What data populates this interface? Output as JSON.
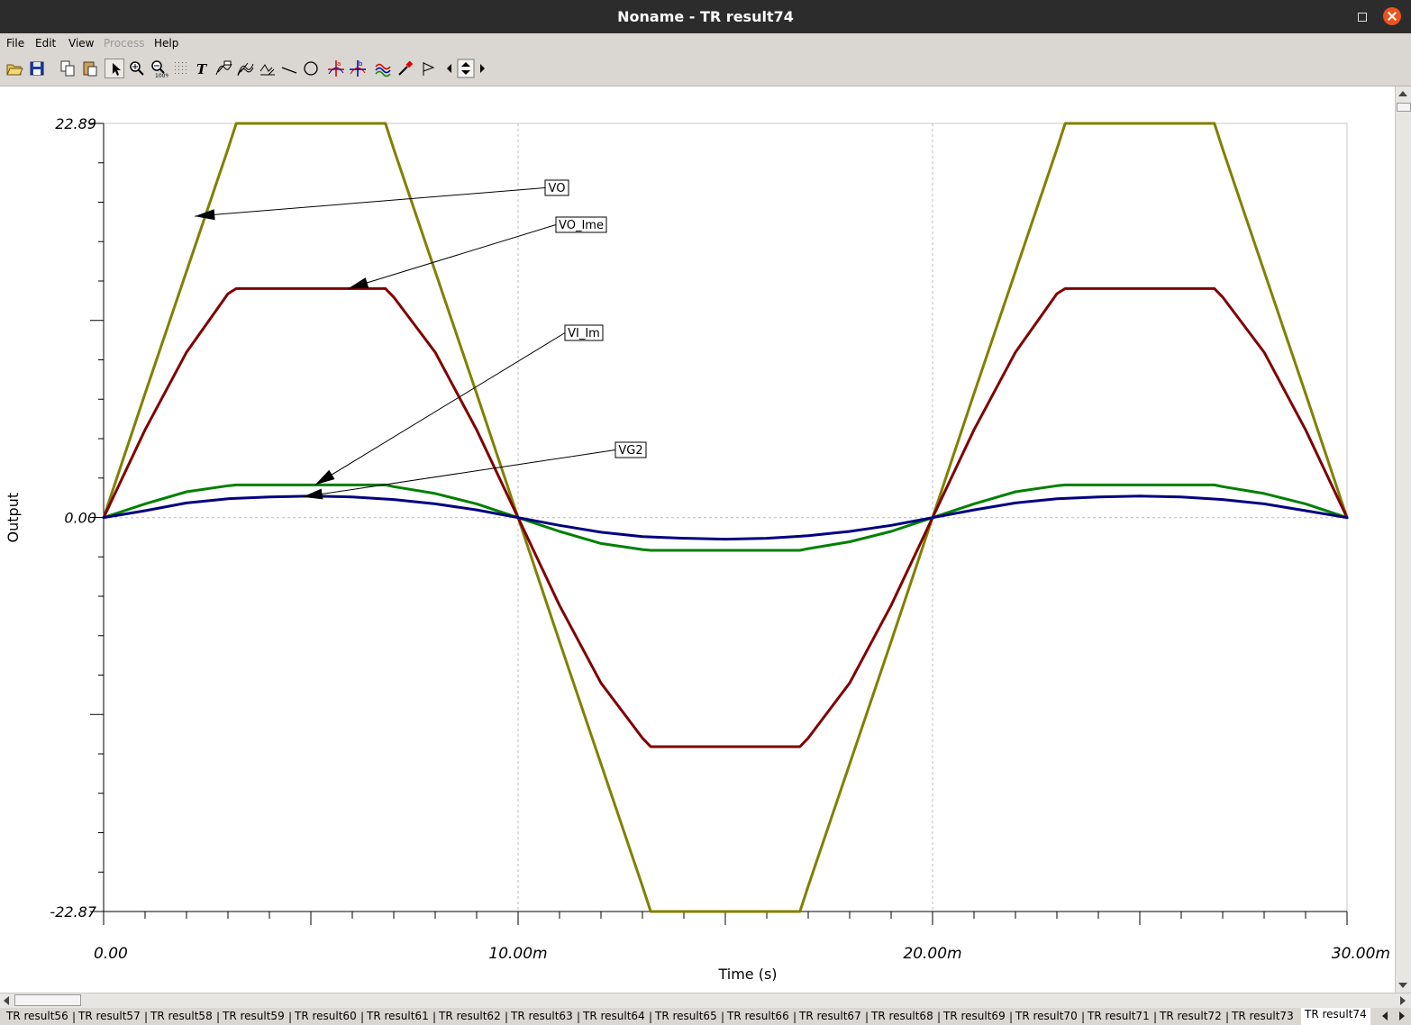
{
  "window": {
    "title": "Noname - TR result74"
  },
  "menu": {
    "items": [
      {
        "label": "File",
        "enabled": true
      },
      {
        "label": "Edit",
        "enabled": true
      },
      {
        "label": "View",
        "enabled": true
      },
      {
        "label": "Process",
        "enabled": false
      },
      {
        "label": "Help",
        "enabled": true
      }
    ]
  },
  "toolbar": {
    "icons": [
      "open-folder-icon",
      "save-icon",
      "copy-icon",
      "paste-icon",
      "pointer-icon",
      "zoom-in-icon",
      "zoom-100-icon",
      "grid-icon",
      "text-icon",
      "curve-label-icon",
      "multi-curve-label-icon",
      "waveform-label-icon",
      "line-icon",
      "circle-icon",
      "cursor-a-icon",
      "cursor-b-icon",
      "wave-select-icon",
      "probe-icon",
      "flag-icon",
      "scroll-left-icon",
      "scroll-updown-icon",
      "scroll-right-icon"
    ]
  },
  "chart_data": {
    "type": "line",
    "title": "",
    "xlabel": "Time (s)",
    "ylabel": "Output",
    "xlim": [
      0,
      0.03
    ],
    "ylim": [
      -22.87,
      22.89
    ],
    "x_tick_labels": [
      "0.00",
      "10.00m",
      "20.00m",
      "30.00m"
    ],
    "x_tick_values": [
      0,
      0.01,
      0.02,
      0.03
    ],
    "y_tick_labels": [
      "22.89",
      "0.00",
      "-22.87"
    ],
    "y_tick_values": [
      22.89,
      0,
      -22.87
    ],
    "grid": true,
    "series": [
      {
        "name": "VO",
        "color": "#808000",
        "x": [
          0,
          0.001,
          0.002,
          0.003,
          0.0032,
          0.004,
          0.005,
          0.006,
          0.0068,
          0.007,
          0.008,
          0.009,
          0.01,
          0.011,
          0.012,
          0.013,
          0.0132,
          0.014,
          0.015,
          0.016,
          0.0168,
          0.017,
          0.018,
          0.019,
          0.02,
          0.021,
          0.022,
          0.023,
          0.0232,
          0.024,
          0.025,
          0.026,
          0.0268,
          0.027,
          0.028,
          0.029,
          0.03
        ],
        "values": [
          0,
          7.2,
          14.3,
          21.4,
          22.89,
          22.89,
          22.89,
          22.89,
          22.89,
          21.4,
          14.3,
          7.2,
          0,
          -7.2,
          -14.3,
          -21.4,
          -22.87,
          -22.87,
          -22.87,
          -22.87,
          -22.87,
          -21.4,
          -14.3,
          -7.2,
          0,
          7.2,
          14.3,
          21.4,
          22.89,
          22.89,
          22.89,
          22.89,
          22.89,
          21.4,
          14.3,
          7.2,
          0
        ]
      },
      {
        "name": "VO_Ime",
        "color": "#800000",
        "x": [
          0,
          0.001,
          0.002,
          0.003,
          0.0032,
          0.004,
          0.005,
          0.006,
          0.0068,
          0.007,
          0.008,
          0.009,
          0.01,
          0.011,
          0.012,
          0.013,
          0.0132,
          0.014,
          0.015,
          0.016,
          0.0168,
          0.017,
          0.018,
          0.019,
          0.02,
          0.021,
          0.022,
          0.023,
          0.0232,
          0.024,
          0.025,
          0.026,
          0.0268,
          0.027,
          0.028,
          0.029,
          0.03
        ],
        "values": [
          0,
          5.1,
          9.6,
          13.0,
          13.3,
          13.3,
          13.3,
          13.3,
          13.3,
          12.8,
          9.6,
          5.1,
          0,
          -5.1,
          -9.6,
          -12.8,
          -13.3,
          -13.3,
          -13.3,
          -13.3,
          -13.3,
          -12.8,
          -9.6,
          -5.1,
          0,
          5.1,
          9.6,
          13.0,
          13.3,
          13.3,
          13.3,
          13.3,
          13.3,
          12.8,
          9.6,
          5.1,
          0
        ]
      },
      {
        "name": "VI_Im",
        "color": "#008000",
        "x": [
          0,
          0.001,
          0.002,
          0.003,
          0.0032,
          0.004,
          0.005,
          0.006,
          0.0068,
          0.007,
          0.008,
          0.009,
          0.01,
          0.011,
          0.012,
          0.013,
          0.0132,
          0.014,
          0.015,
          0.016,
          0.0168,
          0.017,
          0.018,
          0.019,
          0.02,
          0.021,
          0.022,
          0.023,
          0.0232,
          0.024,
          0.025,
          0.026,
          0.0268,
          0.027,
          0.028,
          0.029,
          0.03
        ],
        "values": [
          0,
          0.8,
          1.5,
          1.85,
          1.9,
          1.9,
          1.9,
          1.9,
          1.9,
          1.8,
          1.4,
          0.8,
          0,
          -0.8,
          -1.5,
          -1.85,
          -1.9,
          -1.9,
          -1.9,
          -1.9,
          -1.9,
          -1.8,
          -1.4,
          -0.8,
          0,
          0.8,
          1.5,
          1.85,
          1.9,
          1.9,
          1.9,
          1.9,
          1.9,
          1.8,
          1.4,
          0.8,
          0
        ]
      },
      {
        "name": "VG2",
        "color": "#000080",
        "x": [
          0,
          0.001,
          0.002,
          0.003,
          0.004,
          0.005,
          0.006,
          0.007,
          0.008,
          0.009,
          0.01,
          0.011,
          0.012,
          0.013,
          0.014,
          0.015,
          0.016,
          0.017,
          0.018,
          0.019,
          0.02,
          0.021,
          0.022,
          0.023,
          0.024,
          0.025,
          0.026,
          0.027,
          0.028,
          0.029,
          0.03
        ],
        "values": [
          0,
          0.4,
          0.85,
          1.1,
          1.2,
          1.25,
          1.2,
          1.05,
          0.8,
          0.45,
          0,
          -0.45,
          -0.85,
          -1.1,
          -1.2,
          -1.25,
          -1.2,
          -1.05,
          -0.8,
          -0.45,
          0,
          0.45,
          0.85,
          1.1,
          1.2,
          1.25,
          1.2,
          1.05,
          0.8,
          0.4,
          0
        ]
      }
    ],
    "annotations": [
      {
        "label": "VO",
        "series": "VO",
        "points_to": [
          0.0022,
          17.5
        ]
      },
      {
        "label": "VO_Ime",
        "series": "VO_Ime",
        "points_to": [
          0.0059,
          13.3
        ]
      },
      {
        "label": "VI_Im",
        "series": "VI_Im",
        "points_to": [
          0.0051,
          1.9
        ]
      },
      {
        "label": "VG2",
        "series": "VG2",
        "points_to": [
          0.0048,
          1.2
        ]
      }
    ]
  },
  "tabs": {
    "items": [
      "TR result56",
      "TR result57",
      "TR result58",
      "TR result59",
      "TR result60",
      "TR result61",
      "TR result62",
      "TR result63",
      "TR result64",
      "TR result65",
      "TR result66",
      "TR result67",
      "TR result68",
      "TR result69",
      "TR result70",
      "TR result71",
      "TR result72",
      "TR result73",
      "TR result74"
    ],
    "active": "TR result74"
  }
}
